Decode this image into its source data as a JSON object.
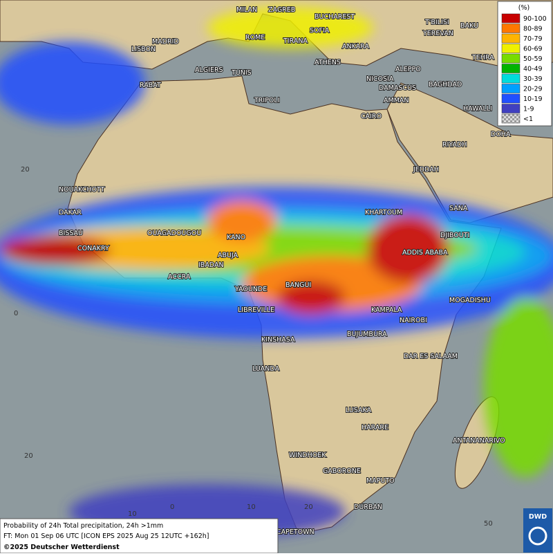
{
  "map": {
    "cities": [
      "MILAN",
      "ZAGREB",
      "BUCHAREST",
      "T'BILISI",
      "BAKU",
      "YEREVAN",
      "TEHRA",
      "MADRID",
      "LISBON",
      "ROME",
      "SOFIA",
      "TIRANA",
      "ANKARA",
      "ATHENS",
      "ALGIERS",
      "TUNIS",
      "RABAT",
      "NICOSIA",
      "ALEPPO",
      "BAGHDAD",
      "DAMASCUS",
      "AMMAN",
      "TRIPOLI",
      "CAIRO",
      "HAWALLI",
      "DOHA",
      "RIYADH",
      "JEDDAH",
      "NOUAKCHOTT",
      "DAKAR",
      "BISSAU",
      "CONAKRY",
      "OUAGADOUGOU",
      "KANO",
      "KHARTOUM",
      "SANA",
      "DJIBOUTI",
      "ADDIS ABABA",
      "ABUJA",
      "IBADAN",
      "ACCRA",
      "YAOUNDE",
      "BANGUI",
      "MOGADISHU",
      "LIBREVILLE",
      "KAMPALA",
      "NAIROBI",
      "BUJUMBURA",
      "KINSHASA",
      "DAR ES SALAAM",
      "LUANDA",
      "LUSAKA",
      "HARARE",
      "ANTANANARIVO",
      "WINDHOEK",
      "GABORONE",
      "MAPUTO",
      "DURBAN",
      "CAPETOWN"
    ],
    "grid_labels": [
      "20",
      "0",
      "20",
      "10",
      "0",
      "10",
      "20",
      "50"
    ],
    "legend": {
      "title": "(%)",
      "entries": [
        {
          "label": "90-100",
          "color": "#c80000"
        },
        {
          "label": "80-89",
          "color": "#ff7800"
        },
        {
          "label": "70-79",
          "color": "#ffb400"
        },
        {
          "label": "60-69",
          "color": "#f0f000"
        },
        {
          "label": "50-59",
          "color": "#78dc00"
        },
        {
          "label": "40-49",
          "color": "#00b400"
        },
        {
          "label": "30-39",
          "color": "#00dcdc"
        },
        {
          "label": "20-29",
          "color": "#00a0ff"
        },
        {
          "label": "10-19",
          "color": "#2050ff"
        },
        {
          "label": "1-9",
          "color": "#4040c0"
        },
        {
          "label": "<1",
          "color": "#bbbbbb"
        }
      ]
    },
    "footer": [
      "Probability of 24h Total precipitation, 24h >1mm",
      "FT: Mon 01 Sep 06 UTC [ICON EPS 2025 Aug 25 12UTC +162h]",
      "©2025 Deutscher Wetterdienst"
    ],
    "logo": "DWD"
  }
}
